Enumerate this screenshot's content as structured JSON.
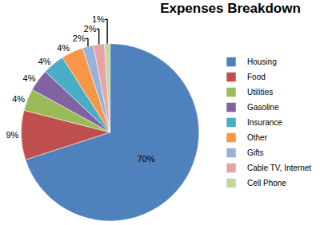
{
  "chart_data": {
    "type": "pie",
    "title": "Expenses Breakdown",
    "categories": [
      "Housing",
      "Food",
      "Utilities",
      "Gasoline",
      "Insurance",
      "Other",
      "Gifts",
      "Cable TV, Internet",
      "Cell Phone"
    ],
    "values": [
      70,
      9,
      4,
      4,
      4,
      4,
      2,
      2,
      1
    ],
    "value_labels": [
      "70%",
      "9%",
      "4%",
      "4%",
      "4%",
      "4%",
      "2%",
      "2%",
      "1%"
    ],
    "colors": [
      "#4f81bd",
      "#c0504d",
      "#9bbb59",
      "#8064a2",
      "#4bacc6",
      "#f79646",
      "#95b3d7",
      "#e6a5a4",
      "#c3d69b"
    ],
    "data_labels": true,
    "legend": "right"
  }
}
